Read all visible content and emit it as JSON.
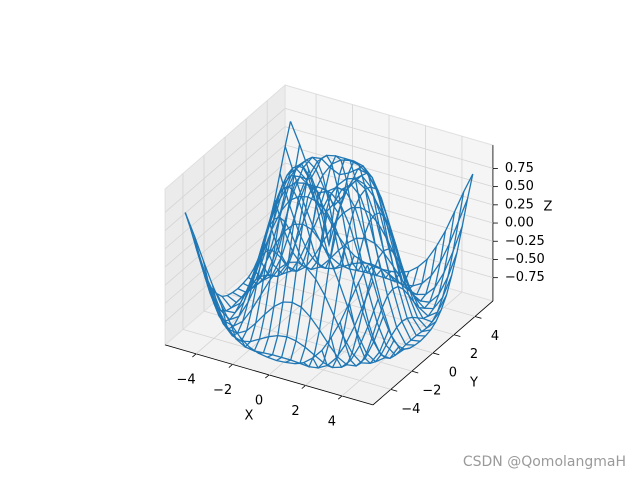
{
  "chart_data": {
    "type": "wireframe",
    "color": "#1f77b4",
    "xlabel": "X",
    "ylabel": "Y",
    "zlabel": "Z",
    "x": [
      -5,
      -4.5,
      -4,
      -3.5,
      -3,
      -2.5,
      -2,
      -1.5,
      -1,
      -0.5,
      0,
      0.5,
      1,
      1.5,
      2,
      2.5,
      3,
      3.5,
      4,
      4.5,
      5
    ],
    "y": [
      -5,
      -4.5,
      -4,
      -3.5,
      -3,
      -2.5,
      -2,
      -1.5,
      -1,
      -0.5,
      0,
      0.5,
      1,
      1.5,
      2,
      2.5,
      3,
      3.5,
      4,
      4.5,
      5
    ],
    "z": [
      [
        0.71,
        0.43,
        0.12,
        -0.18,
        -0.43,
        -0.64,
        -0.78,
        -0.88,
        -0.93,
        -0.95,
        -0.96,
        -0.95,
        -0.93,
        -0.88,
        -0.78,
        -0.64,
        -0.43,
        -0.18,
        0.12,
        0.43,
        0.71
      ],
      [
        0.43,
        0.08,
        -0.26,
        -0.55,
        -0.77,
        -0.91,
        -0.98,
        -1.0,
        -0.99,
        -0.98,
        -0.98,
        -0.98,
        -0.99,
        -1.0,
        -0.98,
        -0.91,
        -0.77,
        -0.55,
        -0.26,
        0.08,
        0.43
      ],
      [
        0.12,
        -0.26,
        -0.59,
        -0.83,
        -0.96,
        -1.0,
        -0.97,
        -0.9,
        -0.83,
        -0.78,
        -0.76,
        -0.78,
        -0.83,
        -0.9,
        -0.97,
        -1.0,
        -0.96,
        -0.83,
        -0.59,
        -0.26,
        0.12
      ],
      [
        -0.18,
        -0.55,
        -0.83,
        -0.97,
        -0.99,
        -0.92,
        -0.78,
        -0.62,
        -0.48,
        -0.38,
        -0.35,
        -0.38,
        -0.48,
        -0.62,
        -0.78,
        -0.92,
        -0.99,
        -0.97,
        -0.83,
        -0.55,
        -0.18
      ],
      [
        -0.43,
        -0.77,
        -0.96,
        -0.99,
        -0.89,
        -0.69,
        -0.45,
        -0.21,
        -0.02,
        0.1,
        0.14,
        0.1,
        -0.02,
        -0.21,
        -0.45,
        -0.69,
        -0.89,
        -0.99,
        -0.96,
        -0.77,
        -0.43
      ],
      [
        -0.64,
        -0.91,
        -1.0,
        -0.92,
        -0.69,
        -0.38,
        -0.06,
        0.22,
        0.43,
        0.56,
        0.6,
        0.56,
        0.43,
        0.22,
        -0.06,
        -0.38,
        -0.69,
        -0.92,
        -1.0,
        -0.91,
        -0.64
      ],
      [
        -0.78,
        -0.98,
        -0.97,
        -0.78,
        -0.45,
        -0.06,
        0.31,
        0.6,
        0.79,
        0.88,
        0.91,
        0.88,
        0.79,
        0.6,
        0.31,
        -0.06,
        -0.45,
        -0.78,
        -0.97,
        -0.98,
        -0.78
      ],
      [
        -0.88,
        -1.0,
        -0.9,
        -0.62,
        -0.21,
        0.22,
        0.6,
        0.85,
        0.97,
        1.0,
        1.0,
        1.0,
        0.97,
        0.85,
        0.6,
        0.22,
        -0.21,
        -0.62,
        -0.9,
        -1.0,
        -0.88
      ],
      [
        -0.93,
        -0.99,
        -0.83,
        -0.48,
        -0.02,
        0.43,
        0.79,
        0.97,
        0.99,
        0.9,
        0.84,
        0.9,
        0.99,
        0.97,
        0.79,
        0.43,
        -0.02,
        -0.48,
        -0.83,
        -0.99,
        -0.93
      ],
      [
        -0.95,
        -0.98,
        -0.78,
        -0.38,
        0.1,
        0.56,
        0.88,
        1.0,
        0.9,
        0.65,
        0.48,
        0.65,
        0.9,
        1.0,
        0.88,
        0.56,
        0.1,
        -0.38,
        -0.78,
        -0.98,
        -0.95
      ],
      [
        -0.96,
        -0.98,
        -0.76,
        -0.35,
        0.14,
        0.6,
        0.91,
        1.0,
        0.84,
        0.48,
        0,
        0.48,
        0.84,
        1.0,
        0.91,
        0.6,
        0.14,
        -0.35,
        -0.76,
        -0.98,
        -0.96
      ],
      [
        -0.95,
        -0.98,
        -0.78,
        -0.38,
        0.1,
        0.56,
        0.88,
        1.0,
        0.9,
        0.65,
        0.48,
        0.65,
        0.9,
        1.0,
        0.88,
        0.56,
        0.1,
        -0.38,
        -0.78,
        -0.98,
        -0.95
      ],
      [
        -0.93,
        -0.99,
        -0.83,
        -0.48,
        -0.02,
        0.43,
        0.79,
        0.97,
        0.99,
        0.9,
        0.84,
        0.9,
        0.99,
        0.97,
        0.79,
        0.43,
        -0.02,
        -0.48,
        -0.83,
        -0.99,
        -0.93
      ],
      [
        -0.88,
        -1.0,
        -0.9,
        -0.62,
        -0.21,
        0.22,
        0.6,
        0.85,
        0.97,
        1.0,
        1.0,
        1.0,
        0.97,
        0.85,
        0.6,
        0.22,
        -0.21,
        -0.62,
        -0.9,
        -1.0,
        -0.88
      ],
      [
        -0.78,
        -0.98,
        -0.97,
        -0.78,
        -0.45,
        -0.06,
        0.31,
        0.6,
        0.79,
        0.88,
        0.91,
        0.88,
        0.79,
        0.6,
        0.31,
        -0.06,
        -0.45,
        -0.78,
        -0.97,
        -0.98,
        -0.78
      ],
      [
        -0.64,
        -0.91,
        -1.0,
        -0.92,
        -0.69,
        -0.38,
        -0.06,
        0.22,
        0.43,
        0.56,
        0.6,
        0.56,
        0.43,
        0.22,
        -0.06,
        -0.38,
        -0.69,
        -0.92,
        -1.0,
        -0.91,
        -0.64
      ],
      [
        -0.43,
        -0.77,
        -0.96,
        -0.99,
        -0.89,
        -0.69,
        -0.45,
        -0.21,
        -0.02,
        0.1,
        0.14,
        0.1,
        -0.02,
        -0.21,
        -0.45,
        -0.69,
        -0.89,
        -0.99,
        -0.96,
        -0.77,
        -0.43
      ],
      [
        -0.18,
        -0.55,
        -0.83,
        -0.97,
        -0.99,
        -0.92,
        -0.78,
        -0.62,
        -0.48,
        -0.38,
        -0.35,
        -0.38,
        -0.48,
        -0.62,
        -0.78,
        -0.92,
        -0.99,
        -0.97,
        -0.83,
        -0.55,
        -0.18
      ],
      [
        0.12,
        -0.26,
        -0.59,
        -0.83,
        -0.96,
        -1.0,
        -0.97,
        -0.9,
        -0.83,
        -0.78,
        -0.76,
        -0.78,
        -0.83,
        -0.9,
        -0.97,
        -1.0,
        -0.96,
        -0.83,
        -0.59,
        -0.26,
        0.12
      ],
      [
        0.43,
        0.08,
        -0.26,
        -0.55,
        -0.77,
        -0.91,
        -0.98,
        -1.0,
        -0.99,
        -0.98,
        -0.98,
        -0.98,
        -0.99,
        -1.0,
        -0.98,
        -0.91,
        -0.77,
        -0.55,
        -0.26,
        0.08,
        0.43
      ],
      [
        0.71,
        0.43,
        0.12,
        -0.18,
        -0.43,
        -0.64,
        -0.78,
        -0.88,
        -0.93,
        -0.95,
        -0.96,
        -0.95,
        -0.93,
        -0.88,
        -0.78,
        -0.64,
        -0.43,
        -0.18,
        0.12,
        0.43,
        0.71
      ]
    ],
    "xlim": [
      -5.7,
      5.7
    ],
    "ylim": [
      -5.7,
      5.7
    ],
    "zlim": [
      -1.07,
      1.07
    ],
    "xticks": [
      {
        "value": -4,
        "label": "−4"
      },
      {
        "value": -2,
        "label": "−2"
      },
      0,
      2,
      4
    ],
    "yticks": [
      {
        "value": -4,
        "label": "−4"
      },
      {
        "value": -2,
        "label": "−2"
      },
      0,
      2,
      4
    ],
    "zticks": [
      {
        "value": -0.75,
        "label": "−0.75"
      },
      {
        "value": -0.5,
        "label": "−0.50"
      },
      {
        "value": -0.25,
        "label": "−0.25"
      },
      {
        "value": 0,
        "label": "0.00"
      },
      {
        "value": 0.25,
        "label": "0.25"
      },
      {
        "value": 0.5,
        "label": "0.50"
      },
      {
        "value": 0.75,
        "label": "0.75"
      }
    ],
    "grid": true
  },
  "watermark": "CSDN @QomolangmaH"
}
